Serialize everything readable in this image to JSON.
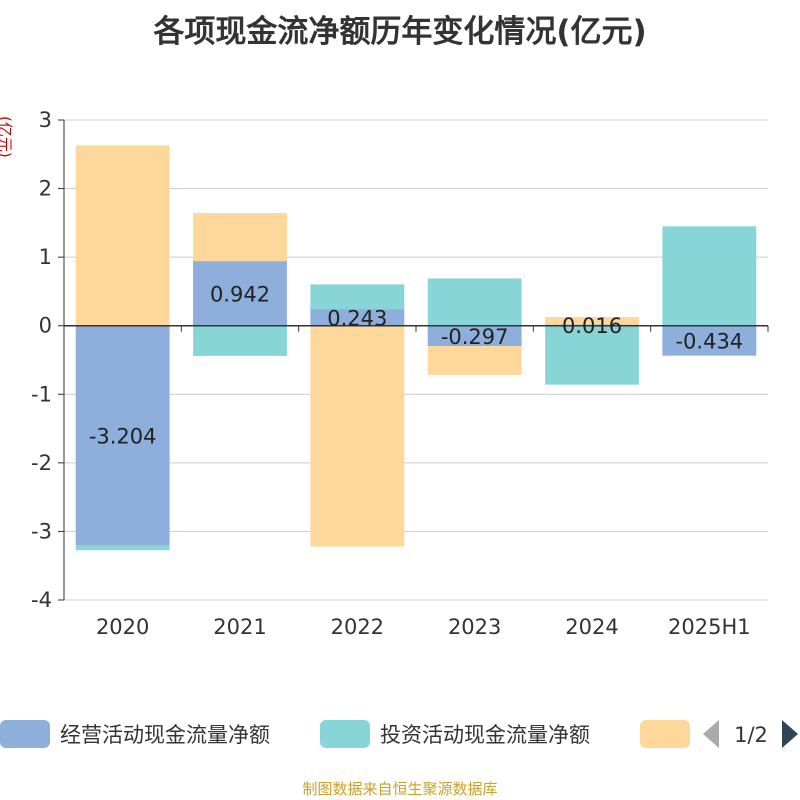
{
  "page": {
    "source_note": "制图数据来自恒生聚源数据库"
  },
  "chart_data": {
    "type": "bar",
    "stacked": true,
    "title": "各项现金流净额历年变化情况(亿元)",
    "ylabel": "(亿元)",
    "xlabel": "",
    "categories": [
      "2020",
      "2021",
      "2022",
      "2023",
      "2024",
      "2025H1"
    ],
    "ylim": [
      -4,
      3
    ],
    "yticks": [
      3,
      2,
      1,
      0,
      -1,
      -2,
      -3,
      -4
    ],
    "grid": true,
    "series": [
      {
        "name": "经营活动现金流量净额",
        "color": "#8eaedb",
        "values": [
          -3.204,
          0.942,
          0.243,
          -0.297,
          0.016,
          -0.434
        ],
        "show_labels": true
      },
      {
        "name": "投资活动现金流量净额",
        "color": "#88d5d8",
        "values": [
          -0.07,
          -0.44,
          0.36,
          0.69,
          -0.86,
          1.45
        ],
        "show_labels": false
      },
      {
        "name": "",
        "color": "#fdd89a",
        "values": [
          2.63,
          0.7,
          -3.22,
          -0.42,
          0.11,
          -0.01
        ],
        "show_labels": false
      }
    ],
    "legend": {
      "position": "bottom",
      "page_indicator": "1/2"
    }
  }
}
